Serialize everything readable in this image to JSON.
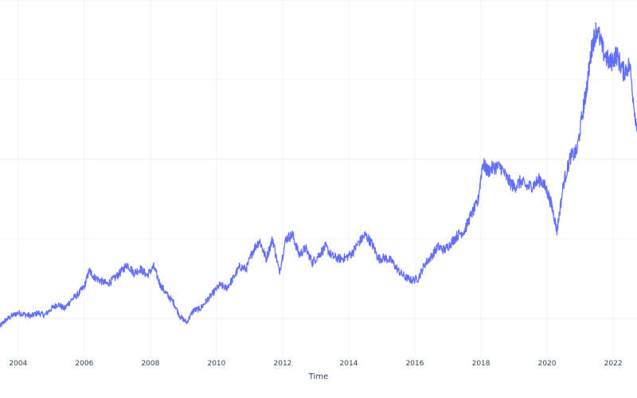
{
  "chart_data": {
    "type": "line",
    "title": "",
    "xlabel": "Time",
    "ylabel": "",
    "x_ticks": [
      "2004",
      "2006",
      "2008",
      "2010",
      "2012",
      "2014",
      "2016",
      "2018",
      "2020",
      "2022"
    ],
    "xlim": [
      2003.45,
      2022.72
    ],
    "ylim": [
      0,
      450
    ],
    "y_gridlines": [
      50,
      150,
      250,
      350,
      450
    ],
    "grid": true,
    "legend": "none",
    "line_color": "#636efa",
    "series": [
      {
        "x": [
          2003.45,
          2003.6,
          2003.8,
          2004.0,
          2004.2,
          2004.4,
          2004.6,
          2004.8,
          2005.0,
          2005.2,
          2005.4,
          2005.6,
          2005.8,
          2006.0,
          2006.15,
          2006.3,
          2006.5,
          2006.7,
          2006.9,
          2007.1,
          2007.3,
          2007.5,
          2007.7,
          2007.9,
          2008.1,
          2008.3,
          2008.5,
          2008.7,
          2008.9,
          2009.1,
          2009.3,
          2009.5,
          2009.7,
          2009.9,
          2010.1,
          2010.3,
          2010.5,
          2010.7,
          2010.9,
          2011.1,
          2011.3,
          2011.5,
          2011.7,
          2011.9,
          2012.1,
          2012.3,
          2012.5,
          2012.7,
          2012.9,
          2013.1,
          2013.3,
          2013.5,
          2013.7,
          2013.9,
          2014.1,
          2014.3,
          2014.5,
          2014.7,
          2014.9,
          2015.1,
          2015.3,
          2015.5,
          2015.7,
          2015.9,
          2016.1,
          2016.3,
          2016.5,
          2016.7,
          2016.9,
          2017.1,
          2017.3,
          2017.5,
          2017.7,
          2017.9,
          2018.05,
          2018.2,
          2018.4,
          2018.6,
          2018.8,
          2019.0,
          2019.2,
          2019.4,
          2019.6,
          2019.8,
          2020.0,
          2020.15,
          2020.3,
          2020.5,
          2020.7,
          2020.9,
          2021.1,
          2021.2,
          2021.35,
          2021.5,
          2021.7,
          2021.9,
          2022.1,
          2022.3,
          2022.5,
          2022.72
        ],
        "y": [
          40,
          47,
          53,
          57,
          55,
          53,
          57,
          54,
          62,
          68,
          62,
          73,
          80,
          90,
          110,
          102,
          97,
          93,
          100,
          108,
          118,
          107,
          112,
          104,
          115,
          92,
          80,
          70,
          52,
          45,
          60,
          62,
          72,
          82,
          92,
          88,
          100,
          115,
          112,
          135,
          148,
          125,
          150,
          108,
          150,
          155,
          130,
          138,
          120,
          130,
          140,
          128,
          125,
          126,
          132,
          145,
          155,
          144,
          125,
          126,
          122,
          110,
          102,
          98,
          100,
          118,
          128,
          140,
          136,
          145,
          155,
          160,
          180,
          195,
          245,
          235,
          240,
          240,
          225,
          215,
          222,
          215,
          218,
          225,
          210,
          190,
          160,
          220,
          252,
          260,
          315,
          340,
          390,
          415,
          385,
          370,
          382,
          360,
          368,
          285
        ]
      }
    ]
  }
}
